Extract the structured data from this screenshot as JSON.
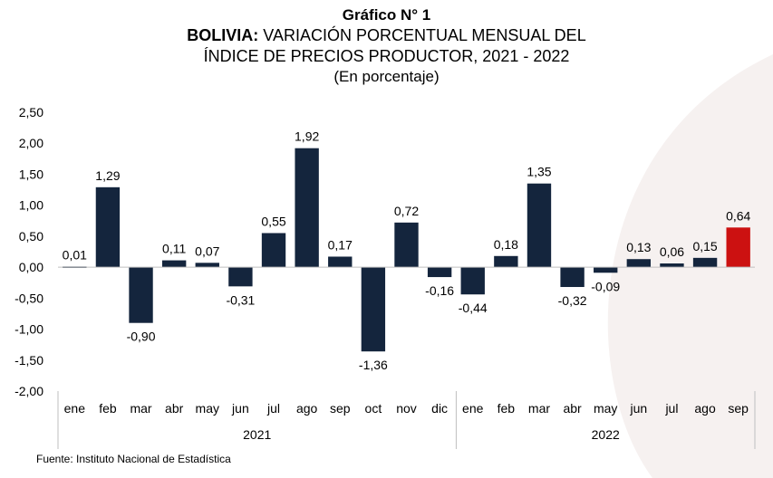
{
  "title": {
    "line1": "Gráfico N° 1",
    "line2_bold": "BOLIVIA:",
    "line2_rest": "VARIACIÓN PORCENTUAL MENSUAL DEL",
    "line3": "ÍNDICE DE PRECIOS PRODUCTOR, 2021 - 2022",
    "line4": "(En porcentaje)"
  },
  "source": "Fuente: Instituto Nacional de Estadística",
  "colors": {
    "bar": "#14253d",
    "highlight": "#cc1111",
    "axis": "#bfbfbf",
    "swoosh": "#f6f1f0"
  },
  "chart_data": {
    "type": "bar",
    "categories": [
      "ene",
      "feb",
      "mar",
      "abr",
      "may",
      "jun",
      "jul",
      "ago",
      "sep",
      "oct",
      "nov",
      "dic",
      "ene",
      "feb",
      "mar",
      "abr",
      "may",
      "jun",
      "jul",
      "ago",
      "sep"
    ],
    "groups": [
      {
        "label": "2021",
        "start": 0,
        "end": 11
      },
      {
        "label": "2022",
        "start": 12,
        "end": 20
      }
    ],
    "values": [
      0.01,
      1.29,
      -0.9,
      0.11,
      0.07,
      -0.31,
      0.55,
      1.92,
      0.17,
      -1.36,
      0.72,
      -0.16,
      -0.44,
      0.18,
      1.35,
      -0.32,
      -0.09,
      0.13,
      0.06,
      0.15,
      0.64
    ],
    "data_labels": [
      "0,01",
      "1,29",
      "-0,90",
      "0,11",
      "0,07",
      "-0,31",
      "0,55",
      "1,92",
      "0,17",
      "-1,36",
      "0,72",
      "-0,16",
      "-0,44",
      "0,18",
      "1,35",
      "-0,32",
      "-0,09",
      "0,13",
      "0,06",
      "0,15",
      "0,64"
    ],
    "highlight_index": 20,
    "ylim": [
      -2.0,
      2.5
    ],
    "yticks": [
      "2,50",
      "2,00",
      "1,50",
      "1,00",
      "0,50",
      "0,00",
      "-0,50",
      "-1,00",
      "-1,50",
      "-2,00"
    ],
    "ytick_values": [
      2.5,
      2.0,
      1.5,
      1.0,
      0.5,
      0.0,
      -0.5,
      -1.0,
      -1.5,
      -2.0
    ],
    "grid": false,
    "legend": "none"
  }
}
